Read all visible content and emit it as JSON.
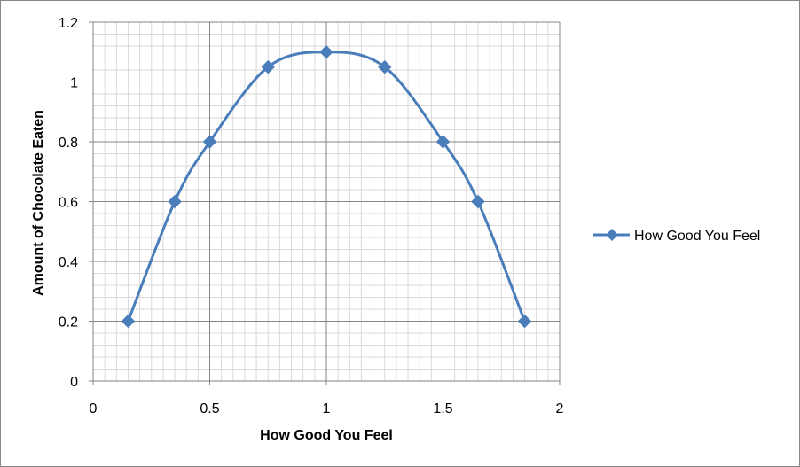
{
  "chart_data": {
    "type": "scatter",
    "title": "",
    "xlabel": "How Good You Feel",
    "ylabel": "Amount of Chocolate Eaten",
    "xlim": [
      0,
      2
    ],
    "ylim": [
      0,
      1.2
    ],
    "x_ticks": [
      0,
      0.5,
      1,
      1.5,
      2
    ],
    "x_tick_labels": [
      "0",
      "0.5",
      "1",
      "1.5",
      "2"
    ],
    "y_ticks": [
      0,
      0.2,
      0.4,
      0.6,
      0.8,
      1,
      1.2
    ],
    "y_tick_labels": [
      "0",
      "0.2",
      "0.4",
      "0.6",
      "0.8",
      "1",
      "1.2"
    ],
    "x_minor_step": 0.05,
    "y_minor_step": 0.04,
    "grid": true,
    "legend_position": "right",
    "line_style": "smooth",
    "marker": "diamond",
    "series": [
      {
        "name": "How Good You Feel",
        "color": "#4A7EBB",
        "x": [
          0.15,
          0.35,
          0.5,
          0.75,
          1,
          1.25,
          1.5,
          1.65,
          1.85
        ],
        "y": [
          0.2,
          0.6,
          0.8,
          1.05,
          1.1,
          1.05,
          0.8,
          0.6,
          0.2
        ]
      }
    ]
  }
}
